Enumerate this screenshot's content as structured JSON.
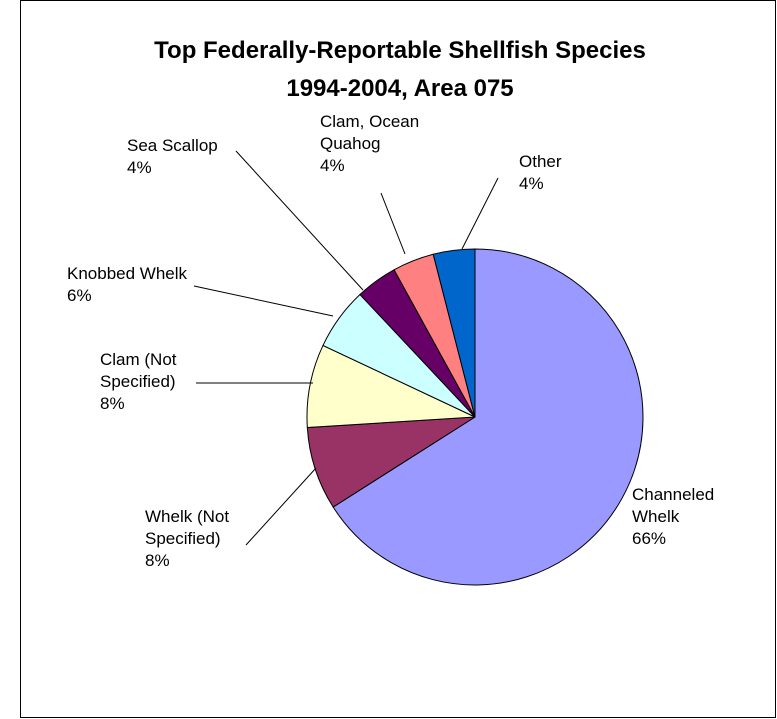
{
  "chart_data": {
    "type": "pie",
    "title": [
      "Top Federally-Reportable Shellfish Species",
      "1994-2004, Area 075"
    ],
    "slices": [
      {
        "label": [
          "Channeled",
          "Whelk"
        ],
        "value": 66,
        "percent_label": "66%",
        "color": "#9999FF"
      },
      {
        "label": [
          "Whelk (Not",
          "Specified)"
        ],
        "value": 8,
        "percent_label": "8%",
        "color": "#993366"
      },
      {
        "label": [
          "Clam (Not",
          "Specified)"
        ],
        "value": 8,
        "percent_label": "8%",
        "color": "#FFFFCC"
      },
      {
        "label": [
          "Knobbed Whelk"
        ],
        "value": 6,
        "percent_label": "6%",
        "color": "#CCFFFF"
      },
      {
        "label": [
          "Sea Scallop"
        ],
        "value": 4,
        "percent_label": "4%",
        "color": "#660066"
      },
      {
        "label": [
          "Clam, Ocean",
          "Quahog"
        ],
        "value": 4,
        "percent_label": "4%",
        "color": "#FF8080"
      },
      {
        "label": [
          "Other"
        ],
        "value": 4,
        "percent_label": "4%",
        "color": "#0066CC"
      }
    ]
  }
}
